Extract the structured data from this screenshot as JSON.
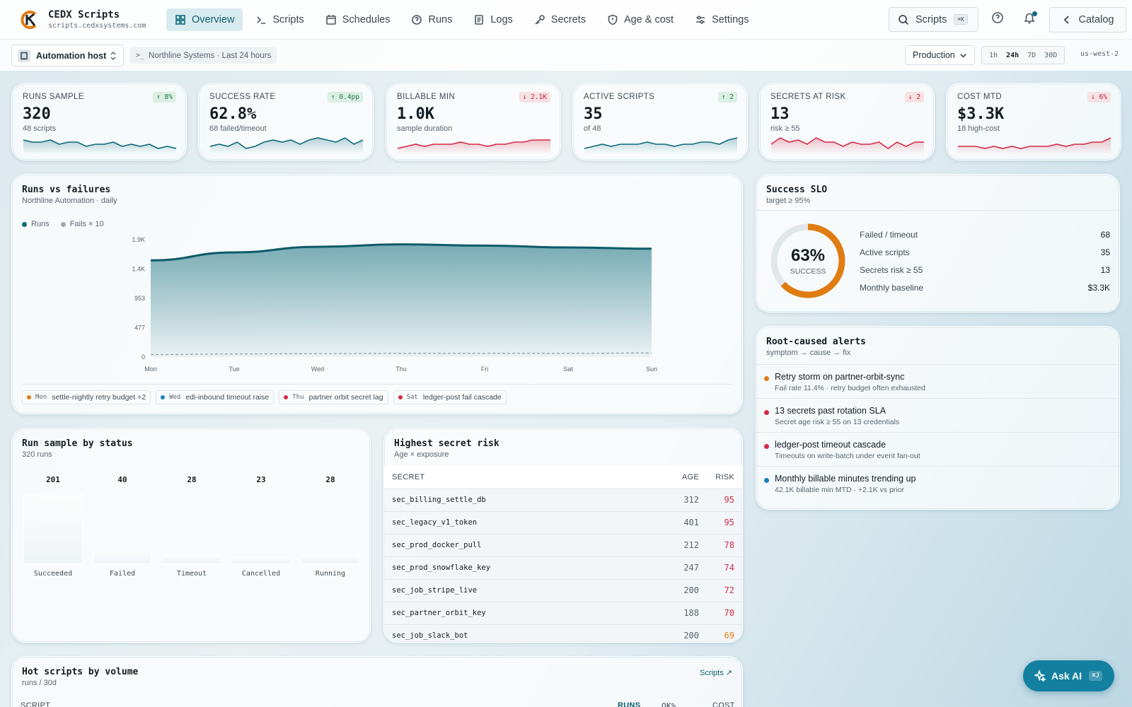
{
  "app": {
    "name": "CEDX Scripts",
    "domain": "scripts.cedxsystems.com"
  },
  "nav": {
    "items": [
      {
        "label": "Overview",
        "icon": "grid-icon",
        "active": true
      },
      {
        "label": "Scripts",
        "icon": "terminal-icon"
      },
      {
        "label": "Schedules",
        "icon": "calendar-icon"
      },
      {
        "label": "Runs",
        "icon": "help-circle-icon"
      },
      {
        "label": "Logs",
        "icon": "document-icon"
      },
      {
        "label": "Secrets",
        "icon": "key-icon"
      },
      {
        "label": "Age & cost",
        "icon": "shield-icon"
      },
      {
        "label": "Settings",
        "icon": "sliders-icon"
      }
    ],
    "search_label": "Scripts",
    "search_kbd": "⌘K",
    "catalog_label": "Catalog"
  },
  "subbar": {
    "host_label": "Automation host",
    "breadcrumb": "Northline Systems · Last 24 hours",
    "env": "Production",
    "ranges": [
      "1h",
      "24h",
      "7D",
      "30D"
    ],
    "selected_range": "24h",
    "region": "us-west-2"
  },
  "colors": {
    "accent": "#0e6a7b",
    "up": "#1d7a47",
    "down": "#c4223b",
    "orange": "#e07c12",
    "red": "#d42a48",
    "blue": "#1a80b8"
  },
  "kpis": [
    {
      "label": "RUNS SAMPLE",
      "value": "320",
      "sub": "48 scripts",
      "delta": "↑ 8%",
      "dir": "up",
      "spark_color": "#0e6a7b",
      "spark": [
        6,
        5,
        5,
        6,
        4,
        5,
        5,
        3,
        4,
        4,
        5,
        3,
        4,
        3,
        4,
        2,
        3,
        2
      ]
    },
    {
      "label": "SUCCESS RATE",
      "value": "62.8%",
      "sub": "68 failed/timeout",
      "delta": "↑ 0.4pp",
      "dir": "up",
      "spark_color": "#0e6a7b",
      "spark": [
        3,
        4,
        3,
        5,
        2,
        3,
        5,
        6,
        5,
        6,
        4,
        6,
        7,
        6,
        5,
        7,
        4,
        6
      ]
    },
    {
      "label": "BILLABLE MIN",
      "value": "1.0K",
      "sub": "sample duration",
      "delta": "↓ 2.1K",
      "dir": "down",
      "spark_color": "#d42a48",
      "spark": [
        2,
        3,
        4,
        3,
        4,
        4,
        4,
        5,
        4,
        4,
        3,
        4,
        4,
        5,
        5,
        6,
        6,
        6
      ]
    },
    {
      "label": "ACTIVE SCRIPTS",
      "value": "35",
      "sub": "of 48",
      "delta": "↑ 2",
      "dir": "up",
      "spark_color": "#0e6a7b",
      "spark": [
        2,
        3,
        4,
        3,
        4,
        4,
        4,
        5,
        4,
        4,
        3,
        4,
        4,
        5,
        5,
        4,
        6,
        7
      ]
    },
    {
      "label": "SECRETS AT RISK",
      "value": "13",
      "sub": "risk ≥ 55",
      "delta": "↓ 2",
      "dir": "down",
      "spark_color": "#d42a48",
      "spark": [
        4,
        7,
        5,
        6,
        4,
        7,
        5,
        5,
        3,
        5,
        4,
        4,
        5,
        2,
        5,
        3,
        5,
        5
      ]
    },
    {
      "label": "COST MTD",
      "value": "$3.3K",
      "sub": "18 high-cost",
      "delta": "↓ 6%",
      "dir": "down",
      "spark_color": "#d42a48",
      "spark": [
        3,
        3,
        3,
        2,
        3,
        2,
        3,
        2,
        3,
        3,
        3,
        4,
        3,
        4,
        4,
        5,
        5,
        7
      ]
    }
  ],
  "runs_chart": {
    "title": "Runs vs failures",
    "subtitle": "Northline Automation · daily",
    "legend": [
      {
        "name": "Runs",
        "color": "#0e6a7b"
      },
      {
        "name": "Fails × 10",
        "color": "#9aa7b0"
      }
    ],
    "tags": [
      {
        "day": "Mon",
        "text": "settle-nightly retry budget +2",
        "color": "#e07c12"
      },
      {
        "day": "Wed",
        "text": "edi-inbound timeout raise",
        "color": "#1a80b8"
      },
      {
        "day": "Thu",
        "text": "partner orbit secret lag",
        "color": "#d42a48"
      },
      {
        "day": "Sat",
        "text": "ledger-post fail cascade",
        "color": "#d42a48"
      }
    ]
  },
  "chart_data": [
    {
      "type": "area",
      "title": "Runs vs failures",
      "subtitle": "Northline Automation · daily",
      "categories": [
        "Mon",
        "Tue",
        "Wed",
        "Thu",
        "Fri",
        "Sat",
        "Sun"
      ],
      "y_ticks": [
        "0",
        "477",
        "953",
        "1.4K",
        "1.9K"
      ],
      "ylim": [
        0,
        1906
      ],
      "series": [
        {
          "name": "Runs",
          "values": [
            1570,
            1700,
            1790,
            1830,
            1810,
            1780,
            1760
          ]
        },
        {
          "name": "Fails × 10",
          "values": [
            40,
            50,
            55,
            60,
            60,
            60,
            65
          ]
        }
      ]
    },
    {
      "type": "bar",
      "title": "Run sample by status",
      "subtitle": "320 runs",
      "categories": [
        "Succeeded",
        "Failed",
        "Timeout",
        "Cancelled",
        "Running"
      ],
      "values": [
        201,
        40,
        28,
        23,
        28
      ]
    },
    {
      "type": "pie",
      "title": "Success SLO",
      "subtitle": "target ≥ 95%",
      "values": [
        63,
        37
      ],
      "categories": [
        "SUCCESS",
        ""
      ]
    }
  ],
  "slo": {
    "title": "Success SLO",
    "subtitle": "target ≥ 95%",
    "percent_label": "63%",
    "percent": 63,
    "center_label": "SUCCESS",
    "rows": [
      {
        "label": "Failed / timeout",
        "value": "68"
      },
      {
        "label": "Active scripts",
        "value": "35"
      },
      {
        "label": "Secrets risk ≥ 55",
        "value": "13"
      },
      {
        "label": "Monthly baseline",
        "value": "$3.3K"
      }
    ]
  },
  "alerts": {
    "title": "Root-caused alerts",
    "subtitle": "symptom → cause → fix",
    "items": [
      {
        "title": "Retry storm on partner-orbit-sync",
        "sub": "Fail rate 11.4% · retry budget often exhausted",
        "color": "#e07c12"
      },
      {
        "title": "13 secrets past rotation SLA",
        "sub": "Secret age risk ≥ 55 on 13 credentials",
        "color": "#d42a48"
      },
      {
        "title": "ledger-post timeout cascade",
        "sub": "Timeouts on write-batch under event fan-out",
        "color": "#d42a48"
      },
      {
        "title": "Monthly billable minutes trending up",
        "sub": "42.1K billable min MTD · +2.1K vs prior",
        "color": "#1a80b8"
      }
    ]
  },
  "status": {
    "title": "Run sample by status",
    "subtitle": "320 runs",
    "bars": [
      {
        "label": "Succeeded",
        "value": "201"
      },
      {
        "label": "Failed",
        "value": "40"
      },
      {
        "label": "Timeout",
        "value": "28"
      },
      {
        "label": "Cancelled",
        "value": "23"
      },
      {
        "label": "Running",
        "value": "28"
      }
    ]
  },
  "secrets": {
    "title": "Highest secret risk",
    "subtitle": "Age × exposure",
    "headers": [
      "SECRET",
      "AGE",
      "RISK"
    ],
    "rows": [
      {
        "name": "sec_billing_settle_db",
        "age": "312",
        "risk": "95",
        "color": "#d42a48"
      },
      {
        "name": "sec_legacy_v1_token",
        "age": "401",
        "risk": "95",
        "color": "#d42a48"
      },
      {
        "name": "sec_prod_docker_pull",
        "age": "212",
        "risk": "78",
        "color": "#d42a48"
      },
      {
        "name": "sec_prod_snowflake_key",
        "age": "247",
        "risk": "74",
        "color": "#d42a48"
      },
      {
        "name": "sec_job_stripe_live",
        "age": "200",
        "risk": "72",
        "color": "#d42a48"
      },
      {
        "name": "sec_partner_orbit_key",
        "age": "188",
        "risk": "70",
        "color": "#d42a48"
      },
      {
        "name": "sec_job_slack_bot",
        "age": "200",
        "risk": "69",
        "color": "#e07c12"
      }
    ]
  },
  "hot": {
    "title": "Hot scripts by volume",
    "subtitle": "runs / 30d",
    "link": "Scripts ↗",
    "headers": [
      "SCRIPT",
      "RUNS",
      "OK%",
      "COST"
    ]
  },
  "ask_ai": {
    "label": "Ask AI",
    "kbd": "⌘J"
  }
}
